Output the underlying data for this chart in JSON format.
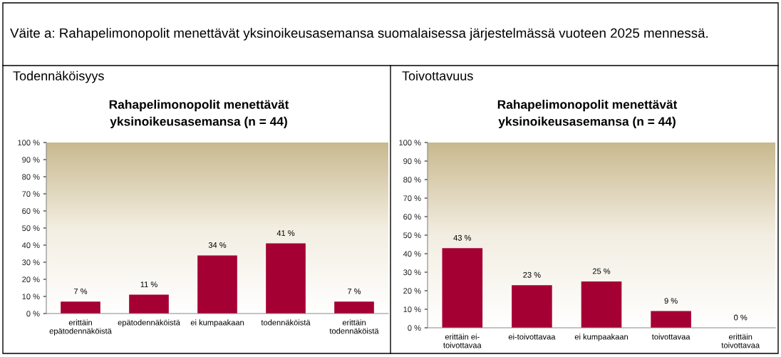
{
  "chart_data": [
    {
      "type": "bar",
      "title": "Rahapelimonopolit menettävät\nyksinoikeusasemansa (n = 44)",
      "subtitle": "Todennäköisyys",
      "annotations": [
        "Väite a: Rahapelimonopolit menettävät yksinoikeusasemansa suomalaisessa järjestelmässä vuoteen 2025 mennessä."
      ],
      "categories": [
        "erittäin\nepätodennäköistä",
        "epätodennäköistä",
        "ei kumpaakaan",
        "todennäköistä",
        "erittäin\ntodennäköistä"
      ],
      "values": [
        7,
        11,
        34,
        41,
        7
      ],
      "value_labels": [
        "7 %",
        "11 %",
        "34 %",
        "41 %",
        "7 %"
      ],
      "color": "#a50034",
      "ylim": [
        0,
        100
      ],
      "yticks": [
        {
          "value": 0,
          "label": "0 %"
        },
        {
          "value": 10,
          "label": "10 %"
        },
        {
          "value": 20,
          "label": "20 %"
        },
        {
          "value": 30,
          "label": "30 %"
        },
        {
          "value": 40,
          "label": "40 %"
        },
        {
          "value": 50,
          "label": "50 %"
        },
        {
          "value": 60,
          "label": "60 %"
        },
        {
          "value": 70,
          "label": "70 %"
        },
        {
          "value": 80,
          "label": "80 %"
        },
        {
          "value": 90,
          "label": "90 %"
        },
        {
          "value": 100,
          "label": "100 %"
        }
      ]
    },
    {
      "type": "bar",
      "title": "Rahapelimonopolit menettävät\nyksinoikeusasemansa (n = 44)",
      "subtitle": "Toivottavuus",
      "categories": [
        "erittäin ei-\ntoivottavaa",
        "ei-toivottavaa",
        "ei kumpaakaan",
        "toivottavaa",
        "erittäin\ntoivottavaa"
      ],
      "values": [
        43,
        23,
        25,
        9,
        0
      ],
      "value_labels": [
        "43 %",
        "23 %",
        "25 %",
        "9 %",
        "0 %"
      ],
      "color": "#a50034",
      "ylim": [
        0,
        100
      ],
      "yticks": [
        {
          "value": 0,
          "label": "0 %"
        },
        {
          "value": 10,
          "label": "10 %"
        },
        {
          "value": 20,
          "label": "20 %"
        },
        {
          "value": 30,
          "label": "30 %"
        },
        {
          "value": 40,
          "label": "40 %"
        },
        {
          "value": 50,
          "label": "50 %"
        },
        {
          "value": 60,
          "label": "60 %"
        },
        {
          "value": 70,
          "label": "70 %"
        },
        {
          "value": 80,
          "label": "80 %"
        },
        {
          "value": 90,
          "label": "90 %"
        },
        {
          "value": 100,
          "label": "100 %"
        }
      ]
    }
  ]
}
